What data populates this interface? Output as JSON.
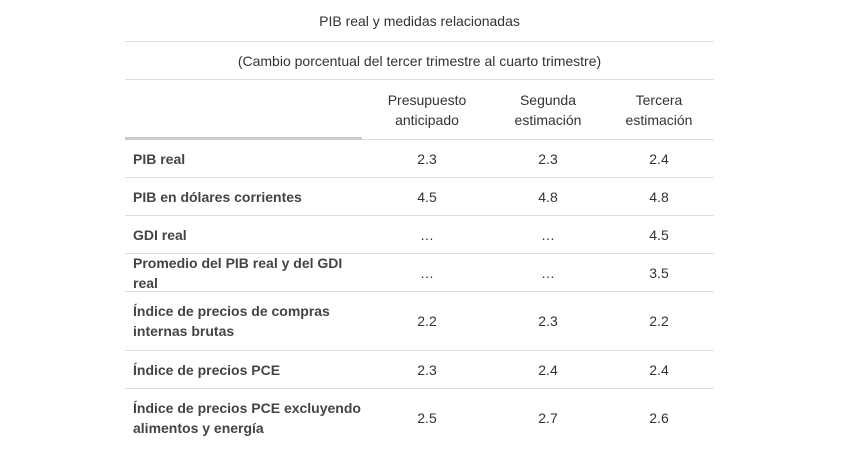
{
  "table": {
    "title": "PIB real y medidas relacionadas",
    "subtitle": "(Cambio porcentual del tercer trimestre al cuarto trimestre)",
    "columns": [
      "Presupuesto\nanticipado",
      "Segunda\nestimación",
      "Tercera\nestimación"
    ],
    "rows": [
      {
        "label": "PIB real",
        "values": [
          "2.3",
          "2.3",
          "2.4"
        ]
      },
      {
        "label": "PIB en dólares corrientes",
        "values": [
          "4.5",
          "4.8",
          "4.8"
        ]
      },
      {
        "label": "GDI real",
        "values": [
          "…",
          "…",
          "4.5"
        ]
      },
      {
        "label": "Promedio del PIB real y del GDI real",
        "values": [
          "…",
          "…",
          "3.5"
        ]
      },
      {
        "label": "Índice de precios de compras internas brutas",
        "values": [
          "2.2",
          "2.3",
          "2.2"
        ]
      },
      {
        "label": "Índice de precios PCE",
        "values": [
          "2.3",
          "2.4",
          "2.4"
        ]
      },
      {
        "label": "Índice de precios PCE excluyendo alimentos y energía",
        "values": [
          "2.5",
          "2.7",
          "2.6"
        ]
      }
    ]
  }
}
